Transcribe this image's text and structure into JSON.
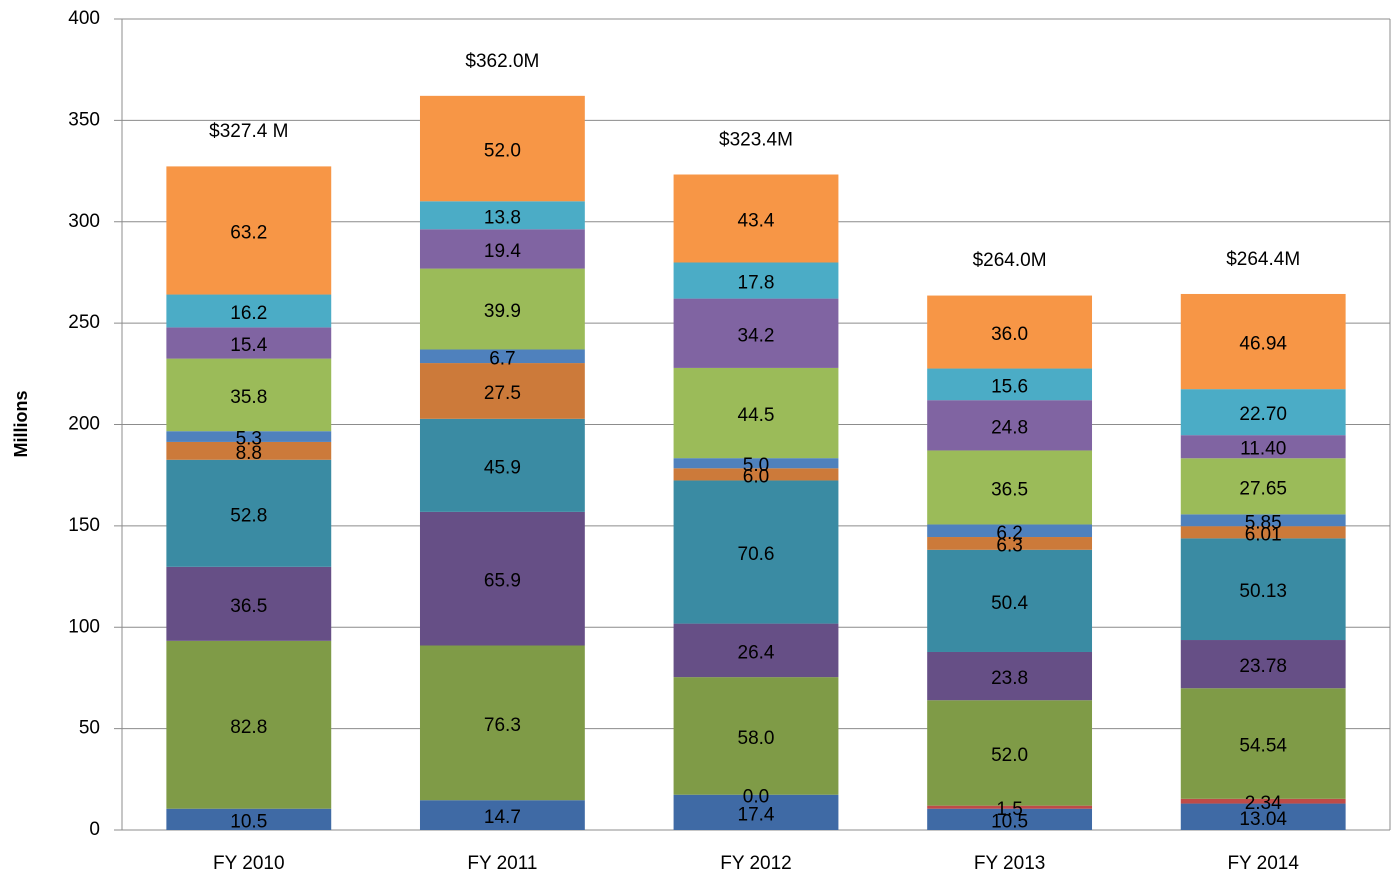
{
  "chart_data": {
    "type": "stacked_bar",
    "y_label": "Millions",
    "categories": [
      "FY 2010",
      "FY 2011",
      "FY 2012",
      "FY 2013",
      "FY 2014"
    ],
    "ylim": [
      0,
      400
    ],
    "yticks": [
      0,
      50,
      100,
      150,
      200,
      250,
      300,
      350,
      400
    ],
    "grid": true,
    "series": [
      {
        "color": "#3f6aa5",
        "values": [
          10.5,
          14.7,
          17.4,
          10.5,
          13.04
        ],
        "value_labels": [
          "10.5",
          "14.7",
          "17.4",
          "10.5",
          "13.04"
        ]
      },
      {
        "color": "#be4b48",
        "values": [
          null,
          null,
          0.0,
          1.5,
          2.34
        ],
        "value_labels": [
          null,
          null,
          "0.0",
          "1.5",
          "2.34"
        ]
      },
      {
        "color": "#7f9b47",
        "values": [
          82.8,
          76.3,
          58.0,
          52.0,
          54.54
        ],
        "value_labels": [
          "82.8",
          "76.3",
          "58.0",
          "52.0",
          "54.54"
        ]
      },
      {
        "color": "#664f86",
        "values": [
          36.5,
          65.9,
          26.4,
          23.8,
          23.78
        ],
        "value_labels": [
          "36.5",
          "65.9",
          "26.4",
          "23.8",
          "23.78"
        ]
      },
      {
        "color": "#3a8ba3",
        "values": [
          52.8,
          45.9,
          70.6,
          50.4,
          50.13
        ],
        "value_labels": [
          "52.8",
          "45.9",
          "70.6",
          "50.4",
          "50.13"
        ]
      },
      {
        "color": "#cc7a3a",
        "values": [
          8.8,
          27.5,
          6.0,
          6.3,
          6.01
        ],
        "value_labels": [
          "8.8",
          "27.5",
          "6.0",
          "6.3",
          "6.01"
        ]
      },
      {
        "color": "#4f81bd",
        "values": [
          5.3,
          6.7,
          5.0,
          6.2,
          5.85
        ],
        "value_labels": [
          "5.3",
          "6.7",
          "5.0",
          "6.2",
          "5.85"
        ]
      },
      {
        "color": "#9bbb59",
        "values": [
          35.8,
          39.9,
          44.5,
          36.5,
          27.65
        ],
        "value_labels": [
          "35.8",
          "39.9",
          "44.5",
          "36.5",
          "27.65"
        ]
      },
      {
        "color": "#8064a2",
        "values": [
          15.4,
          19.4,
          34.2,
          24.8,
          11.4
        ],
        "value_labels": [
          "15.4",
          "19.4",
          "34.2",
          "24.8",
          "11.40"
        ]
      },
      {
        "color": "#4bacc6",
        "values": [
          16.2,
          13.8,
          17.8,
          15.6,
          22.7
        ],
        "value_labels": [
          "16.2",
          "13.8",
          "17.8",
          "15.6",
          "22.70"
        ]
      },
      {
        "color": "#f79646",
        "values": [
          63.2,
          52.0,
          43.4,
          36.0,
          46.94
        ],
        "value_labels": [
          "63.2",
          "52.0",
          "43.4",
          "36.0",
          "46.94"
        ]
      }
    ],
    "totals": {
      "values": [
        327.4,
        362.0,
        323.4,
        264.0,
        264.4
      ],
      "value_labels": [
        "$327.4 M",
        "$362.0M",
        "$323.4M",
        "$264.0M",
        "$264.4M"
      ]
    }
  }
}
